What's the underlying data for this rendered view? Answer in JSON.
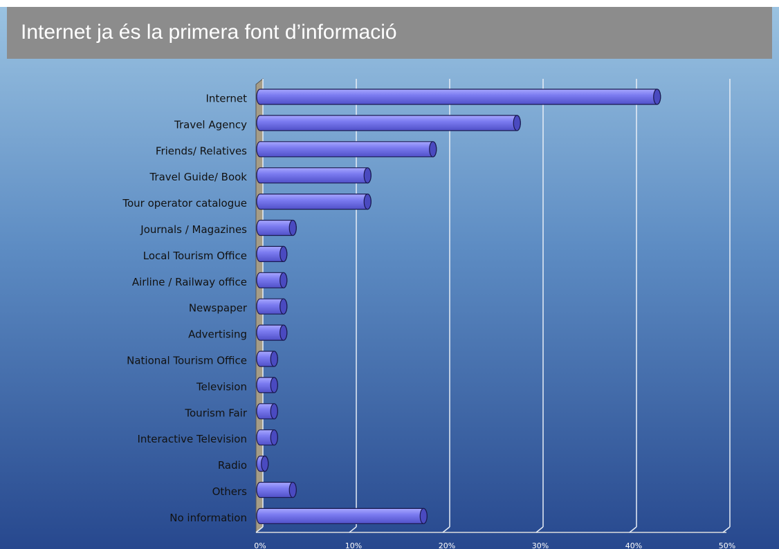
{
  "chart_data": {
    "type": "bar",
    "title": "Internet ja és la primera font d’informació",
    "categories": [
      "Internet",
      "Travel Agency",
      "Friends/ Relatives",
      "Travel Guide/ Book",
      "Tour operator catalogue",
      "Journals / Magazines",
      "Local Tourism Office",
      "Airline / Railway office",
      "Newspaper",
      "Advertising",
      "National Tourism Office",
      "Television",
      "Tourism Fair",
      "Interactive Television",
      "Radio",
      "Others",
      "No information"
    ],
    "values": [
      42.5,
      27.5,
      18.5,
      11.5,
      11.5,
      3.5,
      2.5,
      2.5,
      2.5,
      2.5,
      1.5,
      1.5,
      1.5,
      1.5,
      0.5,
      3.5,
      17.5
    ],
    "color": "#7b7bf0",
    "xlim": [
      0,
      50
    ],
    "xticks": [
      {
        "value": 0,
        "label": "0%"
      },
      {
        "value": 10,
        "label": "10%"
      },
      {
        "value": 20,
        "label": "20%"
      },
      {
        "value": 30,
        "label": "30%"
      },
      {
        "value": 40,
        "label": "40%"
      },
      {
        "value": 50,
        "label": "50%"
      }
    ],
    "grid": true
  }
}
